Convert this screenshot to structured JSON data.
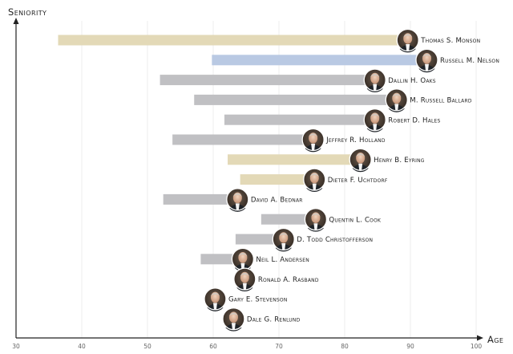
{
  "chart_data": {
    "type": "bar",
    "subtype": "floating-range",
    "ylabel": "Seniority",
    "xlabel": "Age",
    "xlim": [
      30,
      101
    ],
    "xticks": [
      30,
      40,
      50,
      60,
      70,
      80,
      90,
      100
    ],
    "grid": true,
    "colors": {
      "tan": "#e3d9b7",
      "blue": "#b9c9e3",
      "gray": "#c0c0c3",
      "axis": "#222222"
    },
    "people": [
      {
        "name": "Thomas S. Monson",
        "start": 36.4,
        "end": 89.6,
        "color": "tan"
      },
      {
        "name": "Russell M. Nelson",
        "start": 59.8,
        "end": 92.5,
        "color": "blue"
      },
      {
        "name": "Dallin H. Oaks",
        "start": 51.9,
        "end": 84.6,
        "color": "gray"
      },
      {
        "name": "M. Russell Ballard",
        "start": 57.1,
        "end": 87.9,
        "color": "gray"
      },
      {
        "name": "Robert D. Hales",
        "start": 61.7,
        "end": 84.6,
        "color": "gray"
      },
      {
        "name": "Jeffrey R. Holland",
        "start": 53.8,
        "end": 75.2,
        "color": "gray"
      },
      {
        "name": "Henry B. Eyring",
        "start": 62.2,
        "end": 82.4,
        "color": "tan"
      },
      {
        "name": "Dieter F. Uchtdorf",
        "start": 64.1,
        "end": 75.4,
        "color": "tan"
      },
      {
        "name": "David A. Bednar",
        "start": 52.4,
        "end": 63.7,
        "color": "gray"
      },
      {
        "name": "Quentin L. Cook",
        "start": 67.3,
        "end": 75.6,
        "color": "gray"
      },
      {
        "name": "D. Todd Christofferson",
        "start": 63.4,
        "end": 70.7,
        "color": "gray"
      },
      {
        "name": "Neil L. Andersen",
        "start": 58.1,
        "end": 64.5,
        "color": "gray"
      },
      {
        "name": "Ronald A. Rasband",
        "start": null,
        "end": 64.8,
        "color": "gray"
      },
      {
        "name": "Gary E. Stevenson",
        "start": null,
        "end": 60.3,
        "color": "gray"
      },
      {
        "name": "Dale G. Renlund",
        "start": null,
        "end": 63.1,
        "color": "gray"
      }
    ]
  }
}
